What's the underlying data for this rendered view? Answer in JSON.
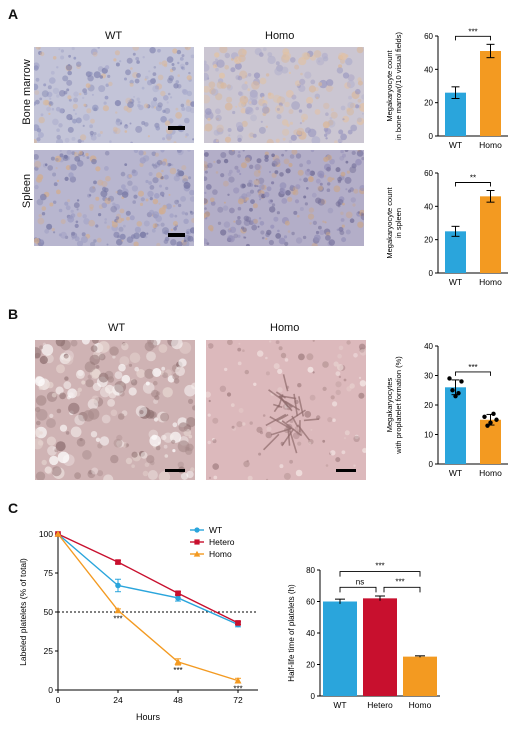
{
  "panels": {
    "a": {
      "letter": "A",
      "col_wt": "WT",
      "col_homo": "Homo",
      "row_bm": "Bone marrow",
      "row_sp": "Spleen"
    },
    "b": {
      "letter": "B",
      "col_wt": "WT",
      "col_homo": "Homo"
    },
    "c": {
      "letter": "C"
    }
  },
  "colors": {
    "wt_blue": "#2aa5dc",
    "homo_orange": "#f39a21",
    "hetero_red": "#c8102e"
  },
  "chart_data": [
    {
      "id": "bm-count",
      "type": "bar",
      "ylabel": "Megakaryocyte count in bone marrow(/10 visual fields)",
      "ylabel_lines": [
        "Megakaryocyte count",
        "in bone marrow(/10 visual fields)"
      ],
      "categories": [
        "WT",
        "Homo"
      ],
      "values": [
        26,
        51
      ],
      "errors": [
        3.5,
        4
      ],
      "ylim": [
        0,
        60
      ],
      "yticks": [
        "0",
        "20",
        "40",
        "60"
      ],
      "significance": "***"
    },
    {
      "id": "spleen-count",
      "type": "bar",
      "ylabel": "Megakaryocyte count in spleen",
      "ylabel_lines": [
        "Megakaryocyte count",
        "in spleen"
      ],
      "categories": [
        "WT",
        "Homo"
      ],
      "values": [
        25,
        46
      ],
      "errors": [
        3,
        3.5
      ],
      "ylim": [
        0,
        60
      ],
      "yticks": [
        "0",
        "20",
        "40",
        "60"
      ],
      "significance": "**"
    },
    {
      "id": "proplatelet",
      "type": "bar",
      "ylabel": "Megakaryocytes with proplatelet formation (%)",
      "ylabel_lines": [
        "Megakaryocytes",
        "with proplatelet formation (%)"
      ],
      "categories": [
        "WT",
        "Homo"
      ],
      "values": [
        26,
        15
      ],
      "errors": [
        2.5,
        1.8
      ],
      "points": [
        [
          29,
          25,
          23,
          24,
          28
        ],
        [
          16,
          13,
          14,
          17,
          15
        ]
      ],
      "ylim": [
        0,
        40
      ],
      "yticks": [
        "0",
        "10",
        "20",
        "30",
        "40"
      ],
      "significance": "***"
    },
    {
      "id": "labeled-platelets",
      "type": "line",
      "xlabel": "Hours",
      "ylabel": "Labeled platelets (% of total)",
      "x": [
        0,
        24,
        48,
        72
      ],
      "xticks": [
        "0",
        "24",
        "48",
        "72"
      ],
      "xlim": [
        0,
        80
      ],
      "ylim": [
        0,
        100
      ],
      "yticks": [
        "0",
        "25",
        "50",
        "75",
        "100"
      ],
      "reference_line": 50,
      "series": [
        {
          "name": "WT",
          "values": [
            100,
            67,
            59,
            42
          ],
          "errors": [
            0,
            4,
            2,
            1.5
          ],
          "marker": "circle"
        },
        {
          "name": "Hetero",
          "values": [
            100,
            82,
            62,
            43
          ],
          "errors": [
            0,
            1,
            1,
            1
          ],
          "marker": "square"
        },
        {
          "name": "Homo",
          "values": [
            100,
            51,
            18,
            6
          ],
          "errors": [
            0,
            1,
            2,
            1.5
          ],
          "marker": "triangle"
        }
      ],
      "annotations": [
        "***",
        "***",
        "***"
      ],
      "legend": "top-right"
    },
    {
      "id": "half-life",
      "type": "bar",
      "ylabel": "Half-life time of platelets (h)",
      "categories": [
        "WT",
        "Hetero",
        "Homo"
      ],
      "values": [
        60,
        62,
        25
      ],
      "errors": [
        1.5,
        1.5,
        0.5
      ],
      "ylim": [
        0,
        80
      ],
      "yticks": [
        "0",
        "20",
        "40",
        "60",
        "80"
      ],
      "comparisons": [
        {
          "pair": [
            "WT",
            "Homo"
          ],
          "label": "***"
        },
        {
          "pair": [
            "WT",
            "Hetero"
          ],
          "label": "ns"
        },
        {
          "pair": [
            "Hetero",
            "Homo"
          ],
          "label": "***"
        }
      ]
    }
  ]
}
